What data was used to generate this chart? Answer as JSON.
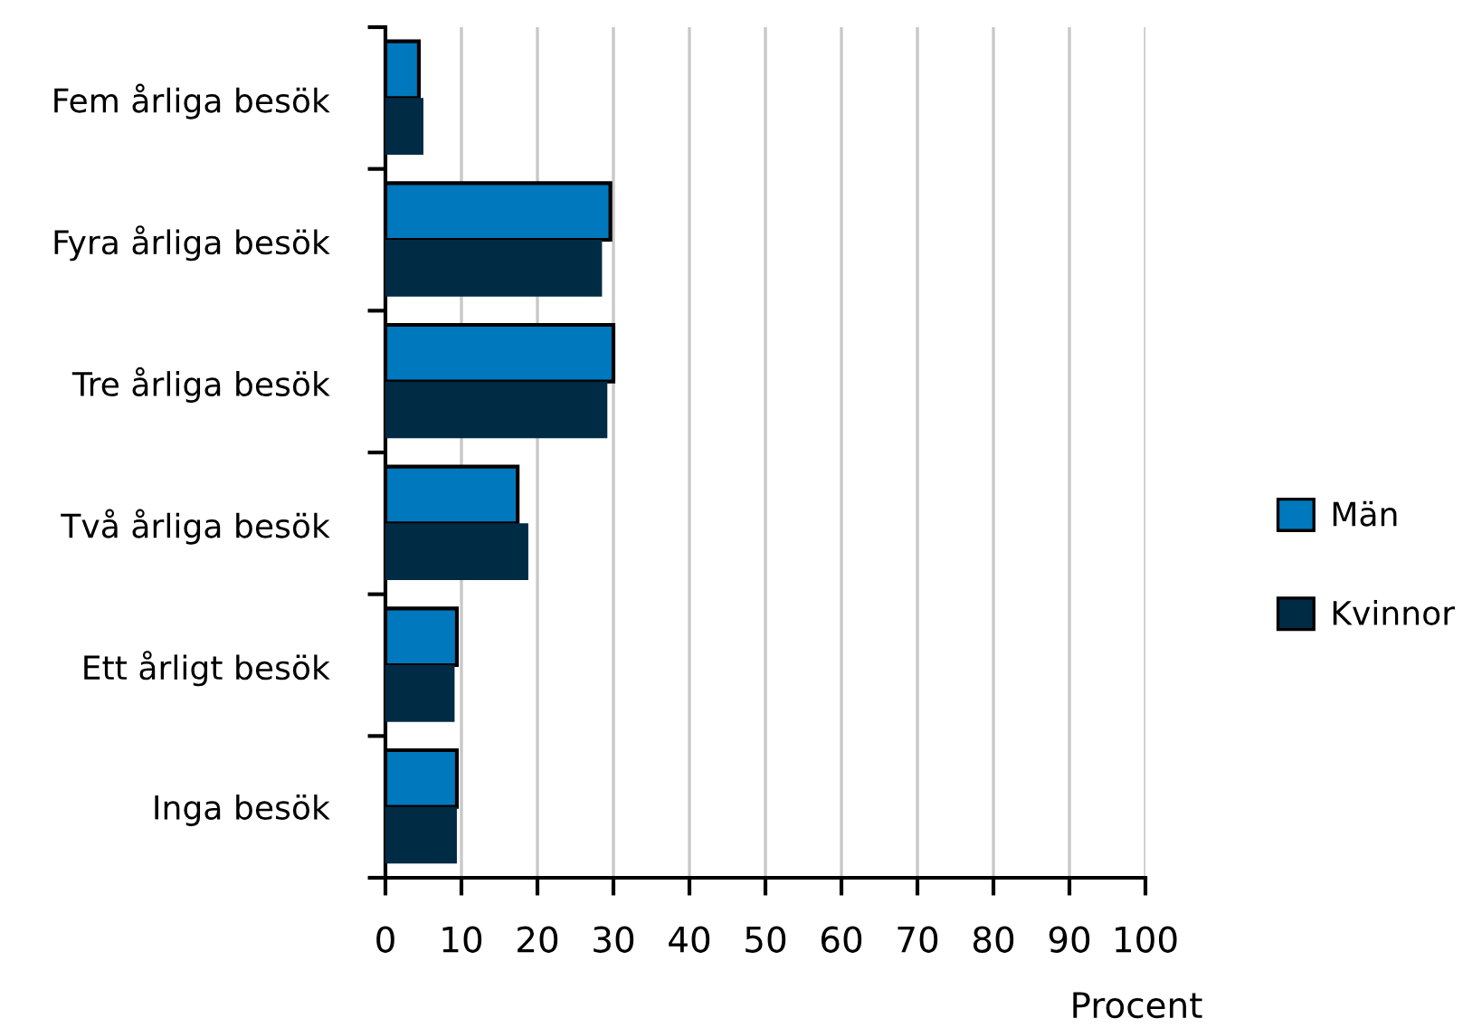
{
  "chart_data": {
    "type": "bar",
    "orientation": "horizontal",
    "categories": [
      "Fem årliga besök",
      "Fyra årliga besök",
      "Tre årliga besök",
      "Två årliga besök",
      "Ett årligt besök",
      "Inga besök"
    ],
    "series": [
      {
        "name": "Män",
        "color": "#0078be",
        "values": [
          4.4,
          29.6,
          30.0,
          17.4,
          9.4,
          9.4
        ]
      },
      {
        "name": "Kvinnor",
        "color": "#002b45",
        "values": [
          5.0,
          28.5,
          29.2,
          18.8,
          9.1,
          9.4
        ]
      }
    ],
    "xlabel": "Procent",
    "xlim": [
      0,
      100
    ],
    "xticks": [
      0,
      10,
      20,
      30,
      40,
      50,
      60,
      70,
      80,
      90,
      100
    ],
    "grid": "x",
    "legend": "right"
  }
}
